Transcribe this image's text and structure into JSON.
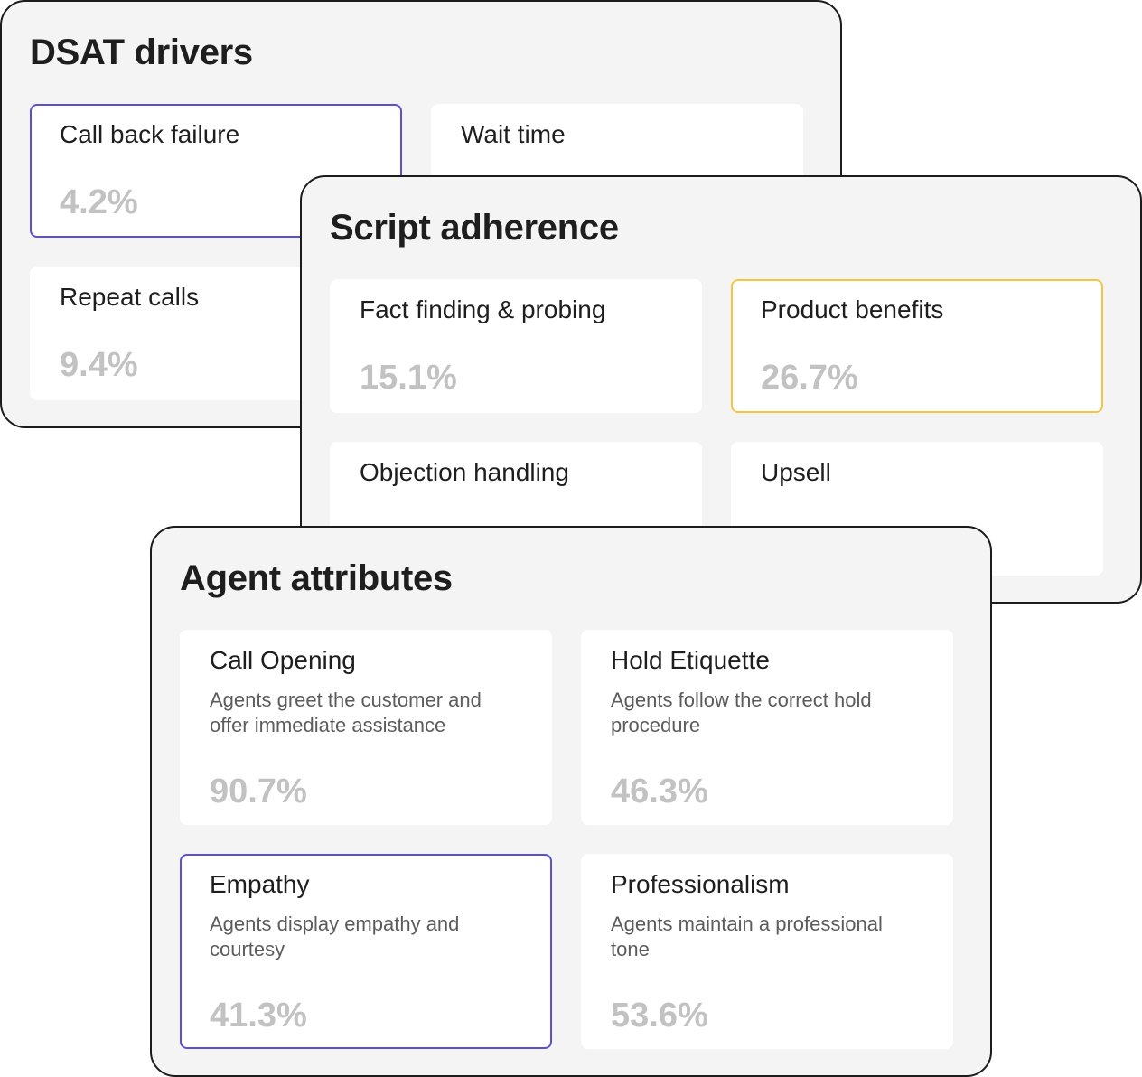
{
  "panels": {
    "dsat": {
      "title": "DSAT drivers",
      "cards": [
        {
          "title": "Call back failure",
          "value": "4.2%"
        },
        {
          "title": "Wait time",
          "value": ""
        },
        {
          "title": "Repeat calls",
          "value": "9.4%"
        },
        {
          "title": "",
          "value": ""
        }
      ]
    },
    "script": {
      "title": "Script adherence",
      "cards": [
        {
          "title": "Fact finding & probing",
          "value": "15.1%"
        },
        {
          "title": "Product benefits",
          "value": "26.7%"
        },
        {
          "title": "Objection handling",
          "value": ""
        },
        {
          "title": "Upsell",
          "value": ""
        }
      ]
    },
    "agent": {
      "title": "Agent attributes",
      "cards": [
        {
          "title": "Call Opening",
          "description": "Agents greet the customer and offer immediate assistance",
          "value": "90.7%"
        },
        {
          "title": "Hold Etiquette",
          "description": "Agents follow the correct hold procedure",
          "value": "46.3%"
        },
        {
          "title": "Empathy",
          "description": "Agents display empathy and courtesy",
          "value": "41.3%"
        },
        {
          "title": "Professionalism",
          "description": "Agents maintain a professional tone",
          "value": "53.6%"
        }
      ]
    }
  },
  "colors": {
    "selected_purple": "#5b4fd9",
    "selected_yellow": "#f5c542",
    "value_gray": "#c2c2c2",
    "panel_bg": "#f4f4f4"
  }
}
